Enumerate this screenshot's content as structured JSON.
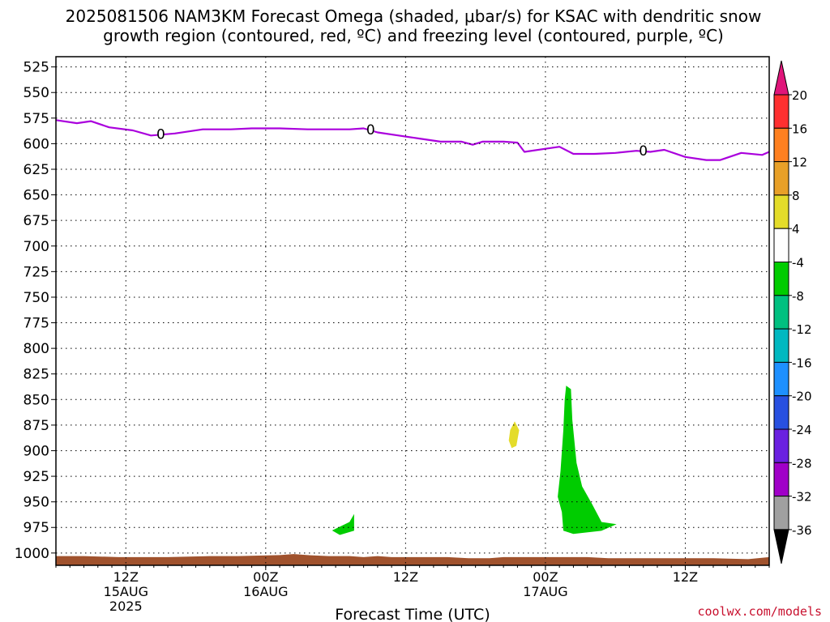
{
  "chart_data": {
    "type": "time-height",
    "title_lines": [
      "2025081506 NAM3KM Forecast Omega (shaded, μbar/s) for KSAC with dendritic snow",
      "growth region (contoured, red, ºC) and freezing level (contoured, purple, ºC)"
    ],
    "xlabel": "Forecast Time (UTC)",
    "credit": "coolwx.com/models",
    "x_range_hours": [
      6,
      57
    ],
    "y_range_hpa": [
      515,
      1012
    ],
    "y_ticks": [
      525,
      550,
      575,
      600,
      625,
      650,
      675,
      700,
      725,
      750,
      775,
      800,
      825,
      850,
      875,
      900,
      925,
      950,
      975,
      1000
    ],
    "x_ticks": [
      {
        "hour": 11,
        "label": "12Z",
        "date": "15AUG",
        "year": "2025"
      },
      {
        "hour": 21,
        "label": "00Z",
        "date": "16AUG",
        "year": ""
      },
      {
        "hour": 31,
        "label": "12Z",
        "date": "",
        "year": ""
      },
      {
        "hour": 41,
        "label": "00Z",
        "date": "17AUG",
        "year": ""
      },
      {
        "hour": 51,
        "label": "12Z",
        "date": "",
        "year": ""
      }
    ],
    "freezing_level": {
      "label": "0",
      "color": "#aa00dd",
      "label_hours": [
        13.5,
        28.5,
        48.0
      ],
      "points": [
        [
          6.0,
          577
        ],
        [
          7.5,
          580
        ],
        [
          8.5,
          578
        ],
        [
          9.8,
          584
        ],
        [
          11.5,
          587
        ],
        [
          12.8,
          592
        ],
        [
          14.5,
          590
        ],
        [
          16.5,
          586
        ],
        [
          18.5,
          586
        ],
        [
          20.0,
          585
        ],
        [
          22.0,
          585
        ],
        [
          24.0,
          586
        ],
        [
          25.5,
          586
        ],
        [
          27.0,
          586
        ],
        [
          28.0,
          585
        ],
        [
          29.0,
          589
        ],
        [
          30.5,
          592
        ],
        [
          32.0,
          595
        ],
        [
          33.5,
          598
        ],
        [
          35.0,
          598
        ],
        [
          35.8,
          601
        ],
        [
          36.5,
          598
        ],
        [
          38.0,
          598
        ],
        [
          39.0,
          599
        ],
        [
          39.5,
          608
        ],
        [
          41.0,
          605
        ],
        [
          42.0,
          603
        ],
        [
          43.0,
          610
        ],
        [
          44.5,
          610
        ],
        [
          46.0,
          609
        ],
        [
          47.5,
          607
        ],
        [
          48.5,
          608
        ],
        [
          49.5,
          606
        ],
        [
          51.0,
          613
        ],
        [
          52.5,
          616
        ],
        [
          53.5,
          616
        ],
        [
          55.0,
          609
        ],
        [
          56.5,
          611
        ],
        [
          57.0,
          608
        ]
      ]
    },
    "omega_areas": [
      {
        "name": "upward motion (-8 to -4)",
        "color": "#00cc00",
        "points": [
          [
            25.8,
            978
          ],
          [
            27.0,
            970
          ],
          [
            27.3,
            963
          ],
          [
            27.3,
            978
          ],
          [
            26.3,
            982
          ]
        ]
      },
      {
        "name": "sinking motion (4 to 8)",
        "color": "#e4dc2a",
        "points": [
          [
            38.5,
            880
          ],
          [
            38.8,
            872
          ],
          [
            39.1,
            880
          ],
          [
            38.9,
            895
          ],
          [
            38.6,
            897
          ],
          [
            38.4,
            890
          ]
        ]
      },
      {
        "name": "upward motion (-8 to -4)",
        "color": "#00cc00",
        "points": [
          [
            42.5,
            837
          ],
          [
            42.8,
            840
          ],
          [
            42.9,
            870
          ],
          [
            43.2,
            912
          ],
          [
            43.6,
            935
          ],
          [
            44.3,
            952
          ],
          [
            45.0,
            970
          ],
          [
            46.0,
            972
          ],
          [
            45.0,
            978
          ],
          [
            43.0,
            981
          ],
          [
            42.3,
            978
          ],
          [
            42.2,
            960
          ],
          [
            41.9,
            945
          ],
          [
            42.1,
            920
          ],
          [
            42.3,
            880
          ],
          [
            42.4,
            850
          ]
        ]
      }
    ],
    "terrain": {
      "color": "#a0522d",
      "surface": [
        [
          6.0,
          1003
        ],
        [
          8.0,
          1003
        ],
        [
          10.5,
          1004
        ],
        [
          11.5,
          1004
        ],
        [
          14.0,
          1004
        ],
        [
          17.0,
          1003
        ],
        [
          19.0,
          1003
        ],
        [
          22.0,
          1002
        ],
        [
          23.0,
          1001
        ],
        [
          24.0,
          1002
        ],
        [
          25.5,
          1003
        ],
        [
          27.0,
          1003
        ],
        [
          28.0,
          1004
        ],
        [
          29.0,
          1003
        ],
        [
          30.0,
          1004
        ],
        [
          32.0,
          1004
        ],
        [
          34.0,
          1004
        ],
        [
          35.5,
          1005
        ],
        [
          37.0,
          1005
        ],
        [
          38.0,
          1004
        ],
        [
          40.0,
          1004
        ],
        [
          42.0,
          1004
        ],
        [
          44.0,
          1004
        ],
        [
          45.5,
          1005
        ],
        [
          47.5,
          1005
        ],
        [
          50.0,
          1005
        ],
        [
          53.0,
          1005
        ],
        [
          55.5,
          1006
        ],
        [
          57.0,
          1004
        ]
      ]
    },
    "colorbar": {
      "labels": [
        "20",
        "16",
        "12",
        "8",
        "4",
        "-4",
        "-8",
        "-12",
        "-16",
        "-20",
        "-24",
        "-28",
        "-32",
        "-36"
      ],
      "top_color": "#e0157a",
      "bottom_color": "#000000",
      "colors": [
        "#ff3030",
        "#ff8020",
        "#e8a028",
        "#e4dc2a",
        "#ffffff",
        "#00cc00",
        "#00c080",
        "#00b8c0",
        "#1e90ff",
        "#2850e0",
        "#6a20e0",
        "#a000c8",
        "#a0a0a0"
      ]
    }
  }
}
